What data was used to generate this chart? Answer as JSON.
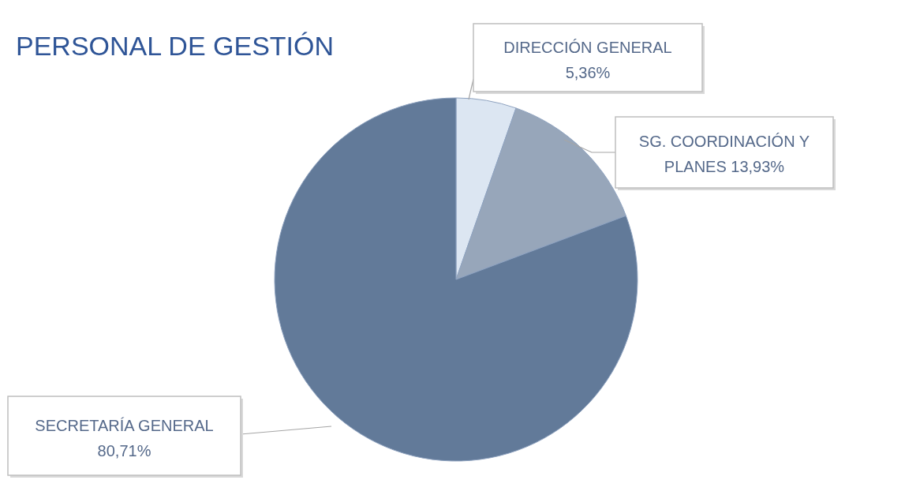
{
  "chart_data": {
    "type": "pie",
    "title": "PERSONAL DE GESTIÓN",
    "categories": [
      "DIRECCIÓN GENERAL",
      "SG. COORDINACIÓN Y PLANES",
      "SECRETARÍA GENERAL"
    ],
    "values": [
      5.36,
      13.93,
      80.71
    ],
    "colors": [
      "#dce6f2",
      "#97a6ba",
      "#627a99"
    ],
    "value_labels": [
      "5,36%",
      "13,93%",
      "80,71%"
    ]
  }
}
